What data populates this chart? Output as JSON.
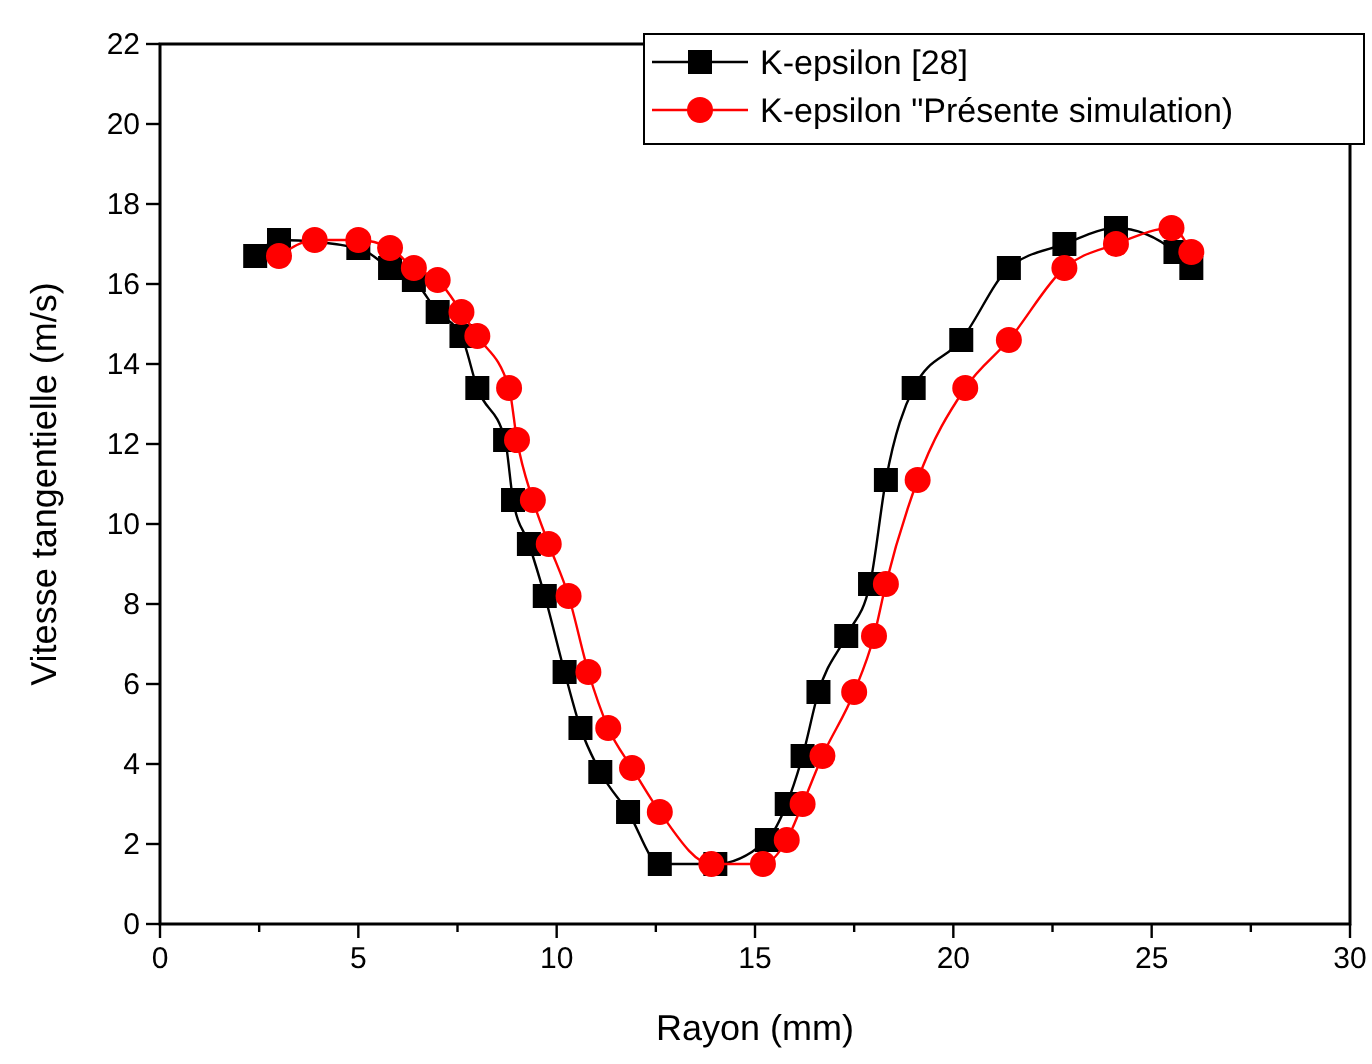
{
  "chart_data": {
    "type": "line",
    "xlabel": "Rayon (mm)",
    "ylabel": "Vitesse tangentielle (m/s)",
    "xlim": [
      0,
      30
    ],
    "ylim": [
      0,
      22
    ],
    "xticks": [
      0,
      {
        "value": 2.5,
        "label": null
      },
      5,
      {
        "value": 7.5,
        "label": null
      },
      10,
      {
        "value": 12.5,
        "label": null
      },
      15,
      {
        "value": 17.5,
        "label": null
      },
      20,
      {
        "value": 22.5,
        "label": null
      },
      25,
      {
        "value": 27.5,
        "label": null
      },
      30
    ],
    "yticks": [
      0,
      2,
      4,
      6,
      8,
      10,
      12,
      14,
      16,
      18,
      20,
      22
    ],
    "grid": false,
    "legend": "top right",
    "series": [
      {
        "name": "K-epsilon [28]",
        "color": "#000000",
        "marker": "square",
        "x": [
          2.4,
          3.0,
          5.0,
          5.8,
          6.4,
          7.0,
          7.6,
          8.0,
          8.7,
          8.9,
          9.3,
          9.7,
          10.2,
          10.6,
          11.1,
          11.8,
          12.6,
          14.0,
          15.3,
          15.8,
          16.2,
          16.6,
          17.3,
          17.9,
          18.3,
          19.0,
          20.2,
          21.4,
          22.8,
          24.1,
          25.6,
          26.0
        ],
        "values": [
          16.7,
          17.1,
          16.9,
          16.4,
          16.1,
          15.3,
          14.7,
          13.4,
          12.1,
          10.6,
          9.5,
          8.2,
          6.3,
          4.9,
          3.8,
          2.8,
          1.5,
          1.5,
          2.1,
          3.0,
          4.2,
          5.8,
          7.2,
          8.5,
          11.1,
          13.4,
          14.6,
          16.4,
          17.0,
          17.4,
          16.8,
          16.4
        ]
      },
      {
        "name": "K-epsilon \"Présente simulation)",
        "color": "#ff0000",
        "marker": "circle",
        "x": [
          3.0,
          3.9,
          5.0,
          5.8,
          6.4,
          7.0,
          7.6,
          8.0,
          8.8,
          9.0,
          9.4,
          9.8,
          10.3,
          10.8,
          11.3,
          11.9,
          12.6,
          13.9,
          15.2,
          15.8,
          16.2,
          16.7,
          17.5,
          18.0,
          18.3,
          19.1,
          20.3,
          21.4,
          22.8,
          24.1,
          25.5,
          26.0
        ],
        "values": [
          16.7,
          17.1,
          17.1,
          16.9,
          16.4,
          16.1,
          15.3,
          14.7,
          13.4,
          12.1,
          10.6,
          9.5,
          8.2,
          6.3,
          4.9,
          3.9,
          2.8,
          1.5,
          1.5,
          2.1,
          3.0,
          4.2,
          5.8,
          7.2,
          8.5,
          11.1,
          13.4,
          14.6,
          16.4,
          17.0,
          17.4,
          16.8
        ]
      }
    ]
  }
}
